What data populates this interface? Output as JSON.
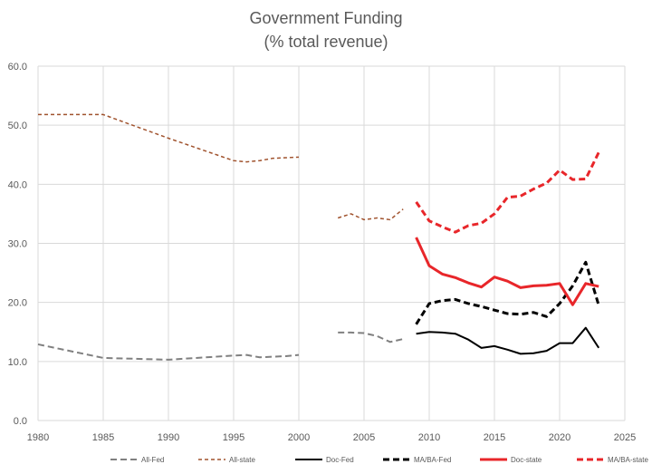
{
  "chart_data": {
    "type": "line",
    "title": "Government Funding",
    "subtitle": "(% total revenue)",
    "xlim": [
      1980,
      2025
    ],
    "ylim": [
      0,
      60
    ],
    "xticks": [
      1980,
      1985,
      1990,
      1995,
      2000,
      2005,
      2010,
      2015,
      2020,
      2025
    ],
    "yticks": [
      "0.0",
      "10.0",
      "20.0",
      "30.0",
      "40.0",
      "50.0",
      "60.0"
    ],
    "grid": true,
    "legend_position": "bottom",
    "series": [
      {
        "name": "All-Fed",
        "color": "#808080",
        "dash": "dash",
        "width": 2,
        "segments": [
          {
            "x": [
              1980,
              1985,
              1990,
              1995,
              1996,
              1997,
              1998,
              1999,
              2000
            ],
            "y": [
              12.9,
              10.6,
              10.3,
              11.0,
              11.1,
              10.7,
              10.8,
              10.9,
              11.1
            ]
          },
          {
            "x": [
              2003,
              2004,
              2005,
              2006,
              2007,
              2008
            ],
            "y": [
              14.9,
              14.9,
              14.8,
              14.3,
              13.3,
              13.8
            ]
          }
        ]
      },
      {
        "name": "All-state",
        "color": "#a0522d",
        "dash": "short",
        "width": 1.5,
        "segments": [
          {
            "x": [
              1980,
              1985,
              1990,
              1995,
              1996,
              1997,
              1998,
              1999,
              2000
            ],
            "y": [
              51.8,
              51.8,
              47.8,
              44.0,
              43.8,
              44.0,
              44.4,
              44.5,
              44.6
            ]
          },
          {
            "x": [
              2003,
              2004,
              2005,
              2006,
              2007,
              2008
            ],
            "y": [
              34.3,
              35.0,
              34.0,
              34.3,
              34.0,
              35.8
            ]
          }
        ]
      },
      {
        "name": "Doc-Fed",
        "color": "#000000",
        "dash": "solid",
        "width": 2,
        "segments": [
          {
            "x": [
              2009,
              2010,
              2011,
              2012,
              2013,
              2014,
              2015,
              2016,
              2017,
              2018,
              2019,
              2020,
              2021,
              2022,
              2023
            ],
            "y": [
              14.7,
              15.0,
              14.9,
              14.7,
              13.7,
              12.3,
              12.6,
              12.0,
              11.3,
              11.4,
              11.8,
              13.1,
              13.1,
              15.7,
              12.3
            ]
          }
        ]
      },
      {
        "name": "MA/BA-Fed",
        "color": "#000000",
        "dash": "dash",
        "width": 3,
        "segments": [
          {
            "x": [
              2009,
              2010,
              2011,
              2012,
              2013,
              2014,
              2015,
              2016,
              2017,
              2018,
              2019,
              2020,
              2021,
              2022,
              2023
            ],
            "y": [
              16.3,
              19.8,
              20.3,
              20.5,
              19.8,
              19.3,
              18.7,
              18.1,
              18.0,
              18.3,
              17.6,
              19.8,
              22.8,
              26.8,
              19.5
            ]
          }
        ]
      },
      {
        "name": "Doc-state",
        "color": "#e8262a",
        "dash": "solid",
        "width": 3,
        "segments": [
          {
            "x": [
              2009,
              2010,
              2011,
              2012,
              2013,
              2014,
              2015,
              2016,
              2017,
              2018,
              2019,
              2020,
              2021,
              2022,
              2023
            ],
            "y": [
              31.0,
              26.2,
              24.8,
              24.2,
              23.3,
              22.6,
              24.3,
              23.6,
              22.5,
              22.8,
              22.9,
              23.2,
              19.6,
              23.2,
              22.7
            ]
          }
        ]
      },
      {
        "name": "MA/BA-state",
        "color": "#e8262a",
        "dash": "dash",
        "width": 3,
        "segments": [
          {
            "x": [
              2009,
              2010,
              2011,
              2012,
              2013,
              2014,
              2015,
              2016,
              2017,
              2018,
              2019,
              2020,
              2021,
              2022,
              2023
            ],
            "y": [
              37.0,
              33.8,
              32.8,
              31.9,
              33.0,
              33.4,
              35.0,
              37.8,
              38.0,
              39.2,
              40.2,
              42.4,
              40.8,
              40.9,
              45.4
            ]
          }
        ]
      }
    ]
  }
}
